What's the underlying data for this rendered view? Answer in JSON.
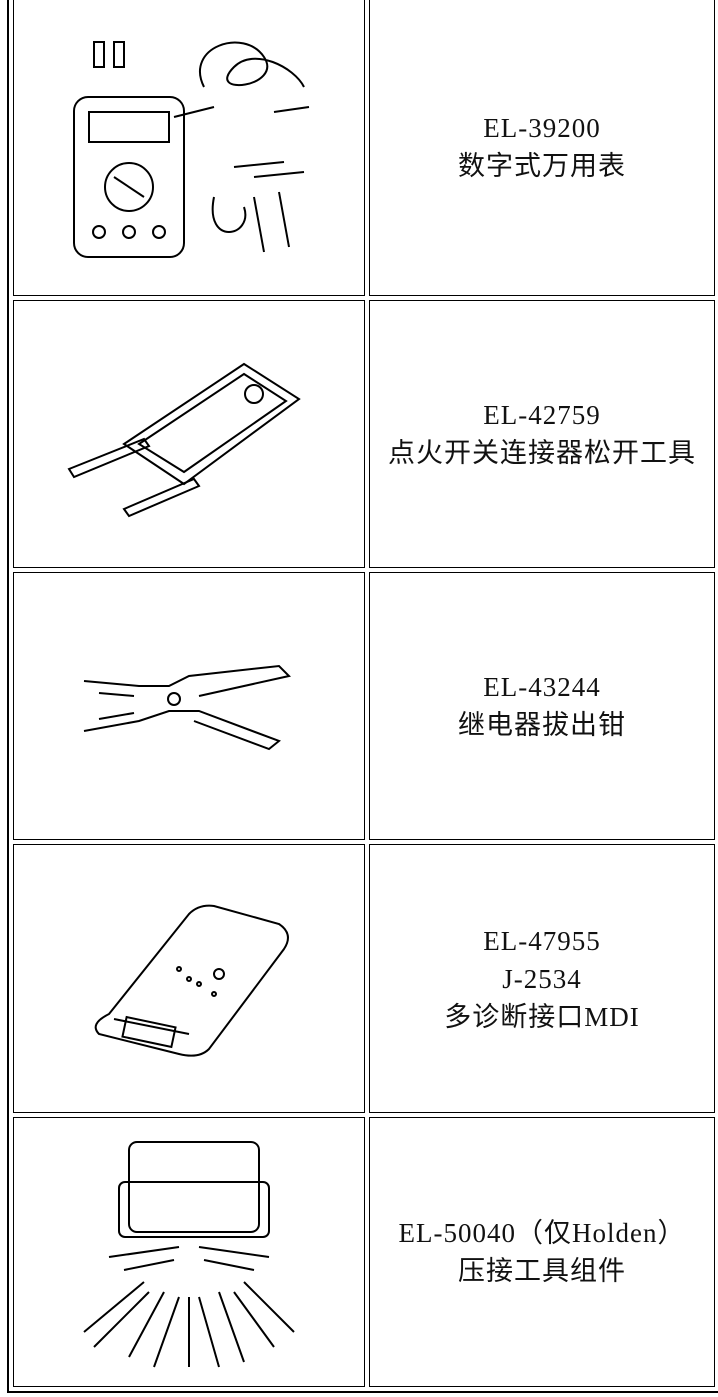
{
  "table": {
    "rows": [
      {
        "lines": [
          "EL-39200",
          "数字式万用表"
        ]
      },
      {
        "lines": [
          "EL-42759",
          "点火开关连接器松开工具"
        ]
      },
      {
        "lines": [
          "EL-43244",
          "继电器拔出钳"
        ]
      },
      {
        "lines": [
          "EL-47955",
          "J-2534",
          "多诊断接口MDI"
        ]
      },
      {
        "lines": [
          "EL-50040（仅Holden）",
          "压接工具组件"
        ]
      }
    ]
  }
}
